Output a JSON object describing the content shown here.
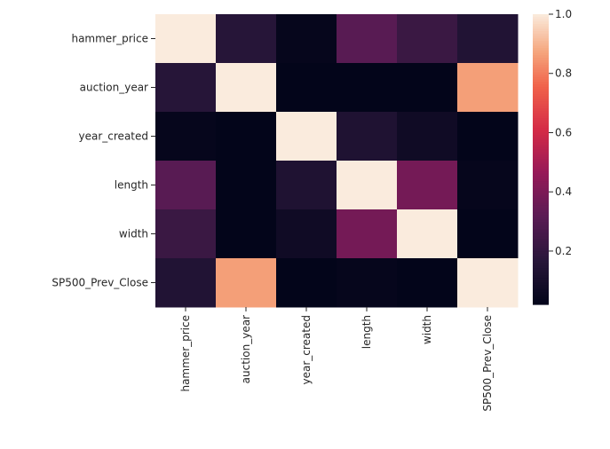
{
  "chart_data": {
    "type": "heatmap",
    "title": "",
    "xlabel": "",
    "ylabel": "",
    "rows": [
      "hammer_price",
      "auction_year",
      "year_created",
      "length",
      "width",
      "SP500_Prev_Close"
    ],
    "columns": [
      "hammer_price",
      "auction_year",
      "year_created",
      "length",
      "width",
      "SP500_Prev_Close"
    ],
    "values": [
      [
        1.0,
        0.16,
        0.03,
        0.31,
        0.22,
        0.14
      ],
      [
        0.16,
        1.0,
        0.01,
        0.02,
        0.02,
        0.86
      ],
      [
        0.03,
        0.01,
        1.0,
        0.13,
        0.07,
        0.02
      ],
      [
        0.31,
        0.02,
        0.13,
        1.0,
        0.38,
        0.03
      ],
      [
        0.22,
        0.02,
        0.07,
        0.38,
        1.0,
        0.02
      ],
      [
        0.14,
        0.86,
        0.02,
        0.03,
        0.02,
        1.0
      ]
    ],
    "colorbar": {
      "range": [
        0.02,
        1.0
      ],
      "ticks": [
        0.2,
        0.4,
        0.6,
        0.8,
        1.0
      ],
      "tick_labels": [
        "0.2",
        "0.4",
        "0.6",
        "0.8",
        "1.0"
      ],
      "colormap": "rocket"
    },
    "grid": false,
    "legend": "colorbar-right"
  }
}
